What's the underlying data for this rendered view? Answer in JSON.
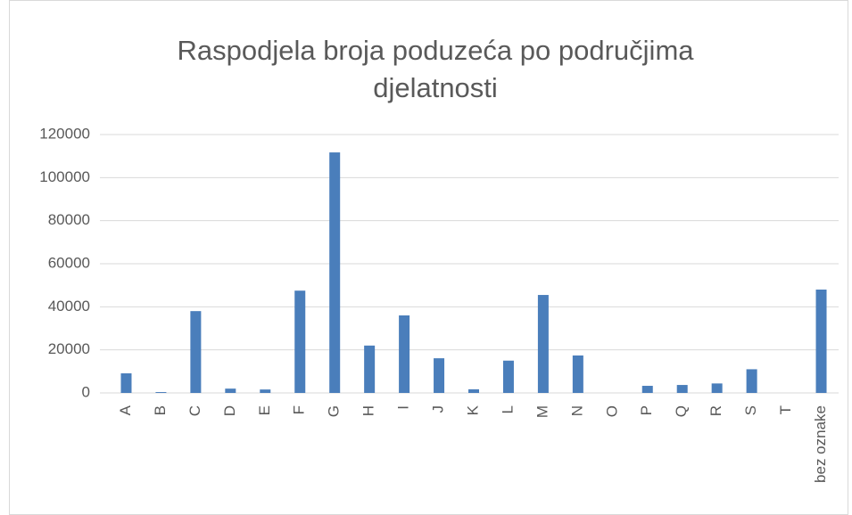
{
  "chart_data": {
    "type": "bar",
    "title": "Raspodjela broja poduzeća po područjima djelatnosti",
    "categories": [
      "A",
      "B",
      "C",
      "D",
      "E",
      "F",
      "G",
      "H",
      "I",
      "J",
      "K",
      "L",
      "M",
      "N",
      "O",
      "P",
      "Q",
      "R",
      "S",
      "T",
      "bez oznake"
    ],
    "values": [
      9100,
      400,
      38000,
      2000,
      1600,
      47500,
      111700,
      22000,
      36000,
      16100,
      1700,
      15000,
      45500,
      17400,
      0,
      3300,
      3700,
      4400,
      11000,
      0,
      48000
    ],
    "color": "#4a7ebb",
    "ylim": [
      0,
      120000
    ],
    "yticks": [
      0,
      20000,
      40000,
      60000,
      80000,
      100000,
      120000
    ],
    "grid": true
  }
}
